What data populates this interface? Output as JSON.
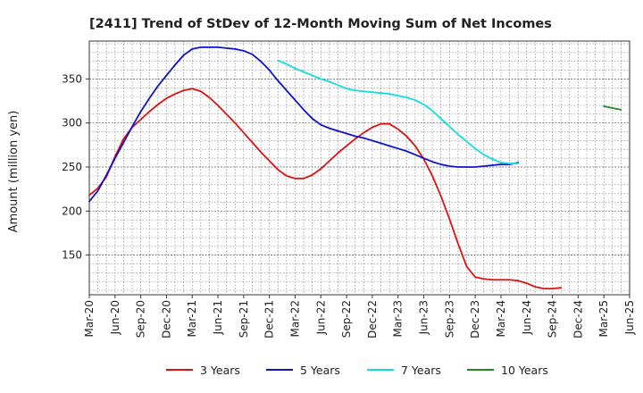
{
  "chart_data": {
    "type": "line",
    "title": "[2411]  Trend of StDev of 12-Month Moving Sum of Net Incomes",
    "ylabel": "Amount (million yen)",
    "xlabel": "",
    "ylim": [
      105,
      393
    ],
    "y_ticks": [
      150,
      200,
      250,
      300,
      350
    ],
    "x_ticks": [
      "Mar-20",
      "Jun-20",
      "Sep-20",
      "Dec-20",
      "Mar-21",
      "Jun-21",
      "Sep-21",
      "Dec-21",
      "Mar-22",
      "Jun-22",
      "Sep-22",
      "Dec-22",
      "Mar-23",
      "Jun-23",
      "Sep-23",
      "Dec-23",
      "Mar-24",
      "Jun-24",
      "Sep-24",
      "Dec-24",
      "Mar-25",
      "Jun-25"
    ],
    "grid": true,
    "legend_position": "bottom",
    "series": [
      {
        "name": "3 Years",
        "color": "#dd1111",
        "points": [
          [
            "Mar-20",
            218
          ],
          [
            "Apr-20",
            226
          ],
          [
            "May-20",
            239
          ],
          [
            "Jun-20",
            262
          ],
          [
            "Jul-20",
            282
          ],
          [
            "Aug-20",
            295
          ],
          [
            "Sep-20",
            304
          ],
          [
            "Oct-20",
            313
          ],
          [
            "Nov-20",
            321
          ],
          [
            "Dec-20",
            328
          ],
          [
            "Jan-21",
            333
          ],
          [
            "Feb-21",
            337
          ],
          [
            "Mar-21",
            339
          ],
          [
            "Apr-21",
            336
          ],
          [
            "May-21",
            329
          ],
          [
            "Jun-21",
            320
          ],
          [
            "Jul-21",
            310
          ],
          [
            "Aug-21",
            300
          ],
          [
            "Sep-21",
            289
          ],
          [
            "Oct-21",
            278
          ],
          [
            "Nov-21",
            267
          ],
          [
            "Dec-21",
            257
          ],
          [
            "Jan-22",
            247
          ],
          [
            "Feb-22",
            240
          ],
          [
            "Mar-22",
            237
          ],
          [
            "Apr-22",
            237
          ],
          [
            "May-22",
            241
          ],
          [
            "Jun-22",
            248
          ],
          [
            "Jul-22",
            257
          ],
          [
            "Aug-22",
            266
          ],
          [
            "Sep-22",
            274
          ],
          [
            "Oct-22",
            282
          ],
          [
            "Nov-22",
            289
          ],
          [
            "Dec-22",
            295
          ],
          [
            "Jan-23",
            299
          ],
          [
            "Feb-23",
            299
          ],
          [
            "Mar-23",
            293
          ],
          [
            "Apr-23",
            285
          ],
          [
            "May-23",
            274
          ],
          [
            "Jun-23",
            259
          ],
          [
            "Jul-23",
            240
          ],
          [
            "Aug-23",
            217
          ],
          [
            "Sep-23",
            191
          ],
          [
            "Oct-23",
            163
          ],
          [
            "Nov-23",
            137
          ],
          [
            "Dec-23",
            125
          ],
          [
            "Jan-24",
            123
          ],
          [
            "Feb-24",
            122
          ],
          [
            "Mar-24",
            122
          ],
          [
            "Apr-24",
            122
          ],
          [
            "May-24",
            121
          ],
          [
            "Jun-24",
            118
          ],
          [
            "Jul-24",
            114
          ],
          [
            "Aug-24",
            112
          ],
          [
            "Sep-24",
            112
          ],
          [
            "Oct-24",
            113
          ]
        ]
      },
      {
        "name": "5 Years",
        "color": "#1111cc",
        "points": [
          [
            "Mar-20",
            211
          ],
          [
            "Apr-20",
            223
          ],
          [
            "May-20",
            241
          ],
          [
            "Jun-20",
            260
          ],
          [
            "Jul-20",
            278
          ],
          [
            "Aug-20",
            296
          ],
          [
            "Sep-20",
            313
          ],
          [
            "Oct-20",
            328
          ],
          [
            "Nov-20",
            342
          ],
          [
            "Dec-20",
            354
          ],
          [
            "Jan-21",
            366
          ],
          [
            "Feb-21",
            377
          ],
          [
            "Mar-21",
            384
          ],
          [
            "Apr-21",
            386
          ],
          [
            "May-21",
            386
          ],
          [
            "Jun-21",
            386
          ],
          [
            "Jul-21",
            385
          ],
          [
            "Aug-21",
            384
          ],
          [
            "Sep-21",
            382
          ],
          [
            "Oct-21",
            378
          ],
          [
            "Nov-21",
            370
          ],
          [
            "Dec-21",
            360
          ],
          [
            "Jan-22",
            348
          ],
          [
            "Feb-22",
            337
          ],
          [
            "Mar-22",
            326
          ],
          [
            "Apr-22",
            315
          ],
          [
            "May-22",
            305
          ],
          [
            "Jun-22",
            298
          ],
          [
            "Jul-22",
            294
          ],
          [
            "Aug-22",
            291
          ],
          [
            "Sep-22",
            288
          ],
          [
            "Oct-22",
            285
          ],
          [
            "Nov-22",
            283
          ],
          [
            "Dec-22",
            280
          ],
          [
            "Jan-23",
            277
          ],
          [
            "Feb-23",
            274
          ],
          [
            "Mar-23",
            271
          ],
          [
            "Apr-23",
            268
          ],
          [
            "May-23",
            264
          ],
          [
            "Jun-23",
            260
          ],
          [
            "Jul-23",
            256
          ],
          [
            "Aug-23",
            253
          ],
          [
            "Sep-23",
            251
          ],
          [
            "Oct-23",
            250
          ],
          [
            "Nov-23",
            250
          ],
          [
            "Dec-23",
            250
          ],
          [
            "Jan-24",
            251
          ],
          [
            "Feb-24",
            252
          ],
          [
            "Mar-24",
            253
          ],
          [
            "Apr-24",
            253
          ],
          [
            "May-24",
            255
          ]
        ]
      },
      {
        "name": "7 Years",
        "color": "#11dddd",
        "points": [
          [
            "Jan-22",
            371
          ],
          [
            "Feb-22",
            367
          ],
          [
            "Mar-22",
            362
          ],
          [
            "Apr-22",
            358
          ],
          [
            "May-22",
            354
          ],
          [
            "Jun-22",
            350
          ],
          [
            "Jul-22",
            347
          ],
          [
            "Aug-22",
            343
          ],
          [
            "Sep-22",
            339
          ],
          [
            "Oct-22",
            337
          ],
          [
            "Nov-22",
            336
          ],
          [
            "Dec-22",
            335
          ],
          [
            "Jan-23",
            334
          ],
          [
            "Feb-23",
            333
          ],
          [
            "Mar-23",
            331
          ],
          [
            "Apr-23",
            329
          ],
          [
            "May-23",
            326
          ],
          [
            "Jun-23",
            321
          ],
          [
            "Jul-23",
            314
          ],
          [
            "Aug-23",
            305
          ],
          [
            "Sep-23",
            296
          ],
          [
            "Oct-23",
            287
          ],
          [
            "Nov-23",
            279
          ],
          [
            "Dec-23",
            271
          ],
          [
            "Jan-24",
            264
          ],
          [
            "Feb-24",
            259
          ],
          [
            "Mar-24",
            255
          ],
          [
            "Apr-24",
            254
          ],
          [
            "May-24",
            254
          ]
        ]
      },
      {
        "name": "10 Years",
        "color": "#228822",
        "points": [
          [
            "Mar-25",
            319
          ],
          [
            "May-25",
            315
          ]
        ]
      }
    ]
  }
}
